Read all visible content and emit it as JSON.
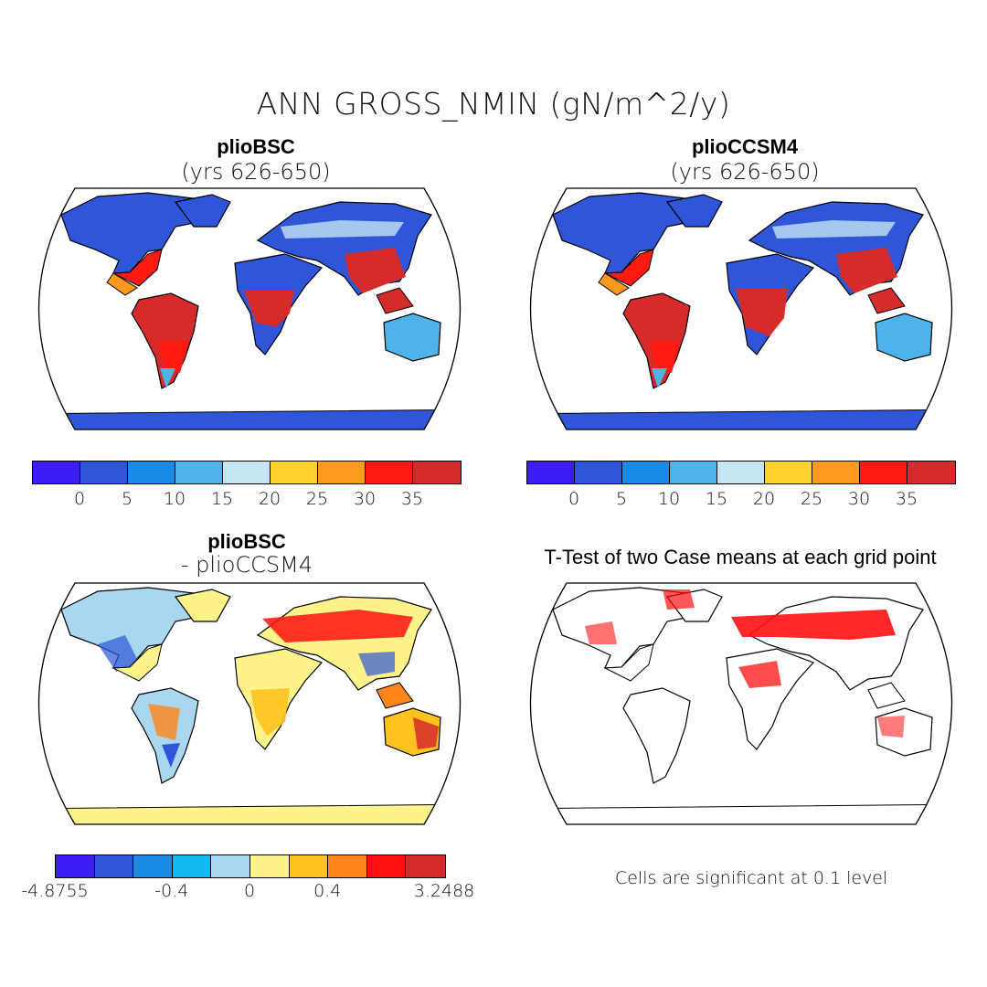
{
  "title": "ANN GROSS_NMIN (gN/m^2/y)",
  "panels": {
    "top_left": {
      "title": "plioBSC",
      "subtitle": "(yrs 626-650)"
    },
    "top_right": {
      "title": "plioCCSM4",
      "subtitle": "(yrs 626-650)"
    },
    "bottom_left": {
      "title": "plioBSC",
      "subtitle": "- plioCCSM4"
    },
    "bottom_right": {
      "title": "T-Test of two Case means at each grid point"
    }
  },
  "colorbars": {
    "absolute": {
      "colors": [
        "#3a1ef5",
        "#2f56d9",
        "#1a8ae8",
        "#4db3ea",
        "#c5e5f3",
        "#ffd22f",
        "#ff9a1e",
        "#ff1a12",
        "#d62b2b"
      ],
      "labels": [
        "0",
        "5",
        "10",
        "15",
        "20",
        "25",
        "30",
        "35"
      ]
    },
    "difference": {
      "colors": [
        "#3a1ef5",
        "#2f56d9",
        "#1a8ae8",
        "#12b8ef",
        "#a9d7f0",
        "#fff38a",
        "#ffc21e",
        "#ff8618",
        "#ff1010",
        "#d62b2b"
      ],
      "labels": [
        "-4.8755",
        "-0.4",
        "0",
        "0.4",
        "3.2488"
      ]
    }
  },
  "note": "Cells are significant at 0.1 level"
}
